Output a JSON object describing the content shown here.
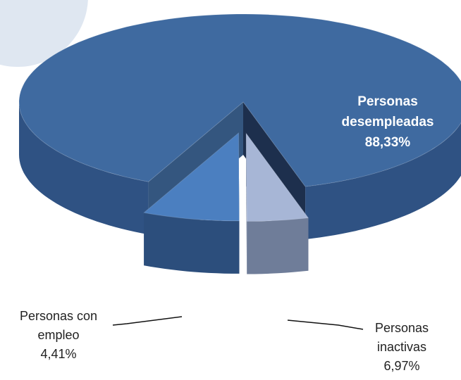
{
  "chart_data": {
    "type": "pie3d",
    "series": [
      {
        "name": "Personas desempleadas",
        "value": 88.33,
        "value_label": "88,33%",
        "color": "#3f6aa0",
        "side_color": "#2f5283"
      },
      {
        "name": "Personas con empleo",
        "value": 4.41,
        "value_label": "4,41%",
        "color": "#a7b6d6",
        "side_color": "#6f7d99"
      },
      {
        "name": "Personas inactivas",
        "value": 6.97,
        "value_label": "6,97%",
        "color": "#4b7fc0",
        "side_color": "#2c4e7c"
      }
    ]
  }
}
